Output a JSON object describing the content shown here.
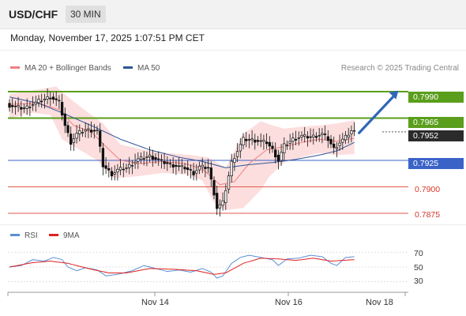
{
  "header": {
    "symbol": "USD/CHF",
    "timeframe": "30 MIN",
    "datetime": "Monday, November 17, 2025 1:07:51 PM CET",
    "copyright": "Research © 2025 Trading Central"
  },
  "legend": {
    "ma20_label": "MA 20 + Bollinger Bands",
    "ma50_label": "MA 50",
    "rsi_label": "RSI",
    "rsi9_label": "9MA"
  },
  "colors": {
    "green_level": "#5a9e1c",
    "blue_level": "#3a63c8",
    "red_level": "#e05a4c",
    "current_price_bg": "#2b2b2b",
    "bollinger_fill": "#fcdada",
    "ma20": "#f08080",
    "ma50": "#2f5597",
    "rsi": "#5b8fd6",
    "rsi9": "#e02020",
    "candle": "#111111",
    "arrow": "#2f66b8"
  },
  "chart_data": [
    {
      "type": "candlestick",
      "symbol": "USD/CHF",
      "ylim": [
        0.7863,
        0.8002
      ],
      "x_ticks": [
        "Nov 14",
        "Nov 16",
        "Nov 18"
      ],
      "levels": [
        {
          "value": 0.799,
          "label": "0.7990",
          "kind": "resistance"
        },
        {
          "value": 0.7965,
          "label": "0.7965",
          "kind": "resistance"
        },
        {
          "value": 0.7952,
          "label": "0.7952",
          "kind": "current"
        },
        {
          "value": 0.7925,
          "label": "0.7925",
          "kind": "pivot"
        },
        {
          "value": 0.79,
          "label": "0.7900",
          "kind": "support"
        },
        {
          "value": 0.7875,
          "label": "0.7875",
          "kind": "support"
        }
      ],
      "anchors": {
        "close": [
          [
            0,
            0.7977
          ],
          [
            5,
            0.7974
          ],
          [
            10,
            0.7981
          ],
          [
            14,
            0.7985
          ],
          [
            17,
            0.798
          ],
          [
            19,
            0.7958
          ],
          [
            21,
            0.7942
          ],
          [
            23,
            0.795
          ],
          [
            26,
            0.7954
          ],
          [
            30,
            0.7953
          ],
          [
            32,
            0.792
          ],
          [
            35,
            0.7912
          ],
          [
            37,
            0.7916
          ],
          [
            40,
            0.7918
          ],
          [
            44,
            0.7926
          ],
          [
            48,
            0.7929
          ],
          [
            52,
            0.7924
          ],
          [
            55,
            0.7921
          ],
          [
            60,
            0.7918
          ],
          [
            63,
            0.7913
          ],
          [
            65,
            0.7919
          ],
          [
            68,
            0.7918
          ],
          [
            70,
            0.7894
          ],
          [
            71,
            0.788
          ],
          [
            73,
            0.7885
          ],
          [
            76,
            0.7923
          ],
          [
            78,
            0.7934
          ],
          [
            80,
            0.7945
          ],
          [
            84,
            0.7944
          ],
          [
            88,
            0.7942
          ],
          [
            90,
            0.7935
          ],
          [
            92,
            0.7925
          ],
          [
            94,
            0.7939
          ],
          [
            97,
            0.7945
          ],
          [
            100,
            0.7948
          ],
          [
            103,
            0.7947
          ],
          [
            107,
            0.795
          ],
          [
            109,
            0.7945
          ],
          [
            111,
            0.7936
          ],
          [
            113,
            0.7942
          ],
          [
            115,
            0.7947
          ],
          [
            117,
            0.7953
          ],
          [
            118,
            0.7952
          ]
        ],
        "ma20": [
          [
            0,
            0.7978
          ],
          [
            10,
            0.7979
          ],
          [
            17,
            0.7973
          ],
          [
            22,
            0.7958
          ],
          [
            28,
            0.7952
          ],
          [
            33,
            0.7938
          ],
          [
            38,
            0.7925
          ],
          [
            45,
            0.7922
          ],
          [
            52,
            0.7924
          ],
          [
            60,
            0.7922
          ],
          [
            66,
            0.7917
          ],
          [
            72,
            0.7902
          ],
          [
            77,
            0.7905
          ],
          [
            82,
            0.7922
          ],
          [
            88,
            0.7935
          ],
          [
            94,
            0.7938
          ],
          [
            100,
            0.7942
          ],
          [
            106,
            0.7945
          ],
          [
            112,
            0.7943
          ],
          [
            118,
            0.7946
          ]
        ],
        "bb_upper": [
          [
            0,
            0.7988
          ],
          [
            10,
            0.7992
          ],
          [
            16,
            0.7995
          ],
          [
            20,
            0.7985
          ],
          [
            26,
            0.7972
          ],
          [
            32,
            0.796
          ],
          [
            38,
            0.794
          ],
          [
            46,
            0.7935
          ],
          [
            54,
            0.7932
          ],
          [
            62,
            0.793
          ],
          [
            68,
            0.7928
          ],
          [
            74,
            0.7918
          ],
          [
            80,
            0.795
          ],
          [
            86,
            0.7962
          ],
          [
            89,
            0.7959
          ],
          [
            94,
            0.7955
          ],
          [
            100,
            0.7957
          ],
          [
            106,
            0.7958
          ],
          [
            112,
            0.796
          ],
          [
            118,
            0.7963
          ]
        ],
        "bb_lower": [
          [
            0,
            0.7965
          ],
          [
            8,
            0.797
          ],
          [
            14,
            0.7968
          ],
          [
            18,
            0.7945
          ],
          [
            24,
            0.7935
          ],
          [
            30,
            0.7925
          ],
          [
            36,
            0.7908
          ],
          [
            44,
            0.791
          ],
          [
            52,
            0.7913
          ],
          [
            60,
            0.7912
          ],
          [
            66,
            0.7906
          ],
          [
            70,
            0.7885
          ],
          [
            74,
            0.7878
          ],
          [
            80,
            0.788
          ],
          [
            86,
            0.7897
          ],
          [
            89,
            0.791
          ],
          [
            94,
            0.7923
          ],
          [
            100,
            0.7928
          ],
          [
            106,
            0.7932
          ],
          [
            112,
            0.793
          ],
          [
            118,
            0.7931
          ]
        ],
        "ma50": [
          [
            0,
            0.7985
          ],
          [
            10,
            0.7979
          ],
          [
            18,
            0.797
          ],
          [
            28,
            0.7958
          ],
          [
            38,
            0.7945
          ],
          [
            48,
            0.7935
          ],
          [
            58,
            0.7928
          ],
          [
            66,
            0.7924
          ],
          [
            74,
            0.7918
          ],
          [
            82,
            0.7921
          ],
          [
            90,
            0.7923
          ],
          [
            98,
            0.7926
          ],
          [
            106,
            0.793
          ],
          [
            112,
            0.7934
          ],
          [
            118,
            0.7942
          ]
        ]
      },
      "arrow": {
        "from": [
          118,
          0.7951
        ],
        "to": [
          132,
          0.7991
        ]
      }
    },
    {
      "type": "line",
      "name": "RSI",
      "ylim": [
        20,
        80
      ],
      "y_ticks": [
        70,
        50,
        30
      ],
      "anchors": {
        "rsi": [
          [
            0,
            50
          ],
          [
            4,
            52
          ],
          [
            8,
            60
          ],
          [
            12,
            58
          ],
          [
            15,
            63
          ],
          [
            18,
            60
          ],
          [
            20,
            50
          ],
          [
            23,
            45
          ],
          [
            26,
            49
          ],
          [
            30,
            46
          ],
          [
            33,
            38
          ],
          [
            37,
            40
          ],
          [
            42,
            45
          ],
          [
            46,
            52
          ],
          [
            50,
            48
          ],
          [
            54,
            44
          ],
          [
            58,
            46
          ],
          [
            62,
            43
          ],
          [
            66,
            48
          ],
          [
            69,
            43
          ],
          [
            71,
            35
          ],
          [
            73,
            38
          ],
          [
            76,
            55
          ],
          [
            79,
            63
          ],
          [
            82,
            66
          ],
          [
            86,
            63
          ],
          [
            90,
            60
          ],
          [
            92,
            52
          ],
          [
            95,
            61
          ],
          [
            99,
            62
          ],
          [
            103,
            66
          ],
          [
            107,
            64
          ],
          [
            110,
            55
          ],
          [
            112,
            52
          ],
          [
            115,
            63
          ],
          [
            118,
            64
          ]
        ],
        "rsi9": [
          [
            0,
            50
          ],
          [
            8,
            56
          ],
          [
            14,
            58
          ],
          [
            20,
            55
          ],
          [
            28,
            47
          ],
          [
            34,
            42
          ],
          [
            40,
            42
          ],
          [
            48,
            48
          ],
          [
            56,
            47
          ],
          [
            64,
            45
          ],
          [
            70,
            40
          ],
          [
            74,
            42
          ],
          [
            80,
            55
          ],
          [
            86,
            62
          ],
          [
            92,
            61
          ],
          [
            98,
            59
          ],
          [
            104,
            62
          ],
          [
            110,
            58
          ],
          [
            118,
            60
          ]
        ]
      }
    }
  ]
}
